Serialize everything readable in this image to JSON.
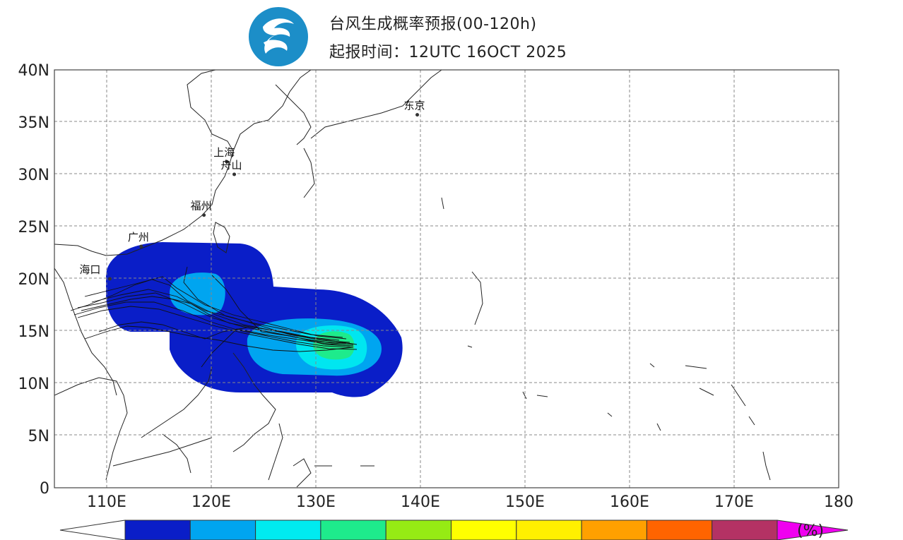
{
  "header": {
    "logo_icon": "cma-swirl-logo-icon",
    "title": "台风生成概率预报(00-120h)",
    "subtitle": "起报时间：12UTC 16OCT 2025"
  },
  "map": {
    "projection": "equirectangular",
    "lon_range": [
      105,
      180
    ],
    "lat_range": [
      0,
      40
    ],
    "grid": "dashed",
    "lat_ticks": [
      {
        "value": 40,
        "label": "40N"
      },
      {
        "value": 35,
        "label": "35N"
      },
      {
        "value": 30,
        "label": "30N"
      },
      {
        "value": 25,
        "label": "25N"
      },
      {
        "value": 20,
        "label": "20N"
      },
      {
        "value": 15,
        "label": "15N"
      },
      {
        "value": 10,
        "label": "10N"
      },
      {
        "value": 5,
        "label": "5N"
      },
      {
        "value": 0,
        "label": "0"
      }
    ],
    "lon_ticks": [
      {
        "value": 110,
        "label": "110E"
      },
      {
        "value": 120,
        "label": "120E"
      },
      {
        "value": 130,
        "label": "130E"
      },
      {
        "value": 140,
        "label": "140E"
      },
      {
        "value": 150,
        "label": "150E"
      },
      {
        "value": 160,
        "label": "160E"
      },
      {
        "value": 170,
        "label": "170E"
      },
      {
        "value": 180,
        "label": "180"
      }
    ],
    "cities": [
      {
        "name": "东京",
        "lon": 139.7,
        "lat": 35.7
      },
      {
        "name": "上海",
        "lon": 121.5,
        "lat": 31.2
      },
      {
        "name": "舟山",
        "lon": 122.2,
        "lat": 30.0
      },
      {
        "name": "福州",
        "lon": 119.3,
        "lat": 26.1
      },
      {
        "name": "广州",
        "lon": 113.3,
        "lat": 23.1
      },
      {
        "name": "海口",
        "lon": 110.3,
        "lat": 20.0
      }
    ],
    "probability_zones": [
      {
        "color": "#0a1ec8",
        "level": 1
      },
      {
        "color": "#00a5f0",
        "level": 2
      },
      {
        "color": "#00e6f0",
        "level": 3
      },
      {
        "color": "#1eeb8c",
        "level": 4
      }
    ],
    "tracks": "ensemble member tracks (black lines)",
    "legend": {
      "unit": "(%)",
      "colors": [
        "#ffffff",
        "#0a1ec8",
        "#00a5f0",
        "#00ebf0",
        "#1eeb8c",
        "#96eb14",
        "#ffff00",
        "#fff000",
        "#ffa000",
        "#ff6400",
        "#b43264",
        "#f000f0"
      ]
    }
  }
}
